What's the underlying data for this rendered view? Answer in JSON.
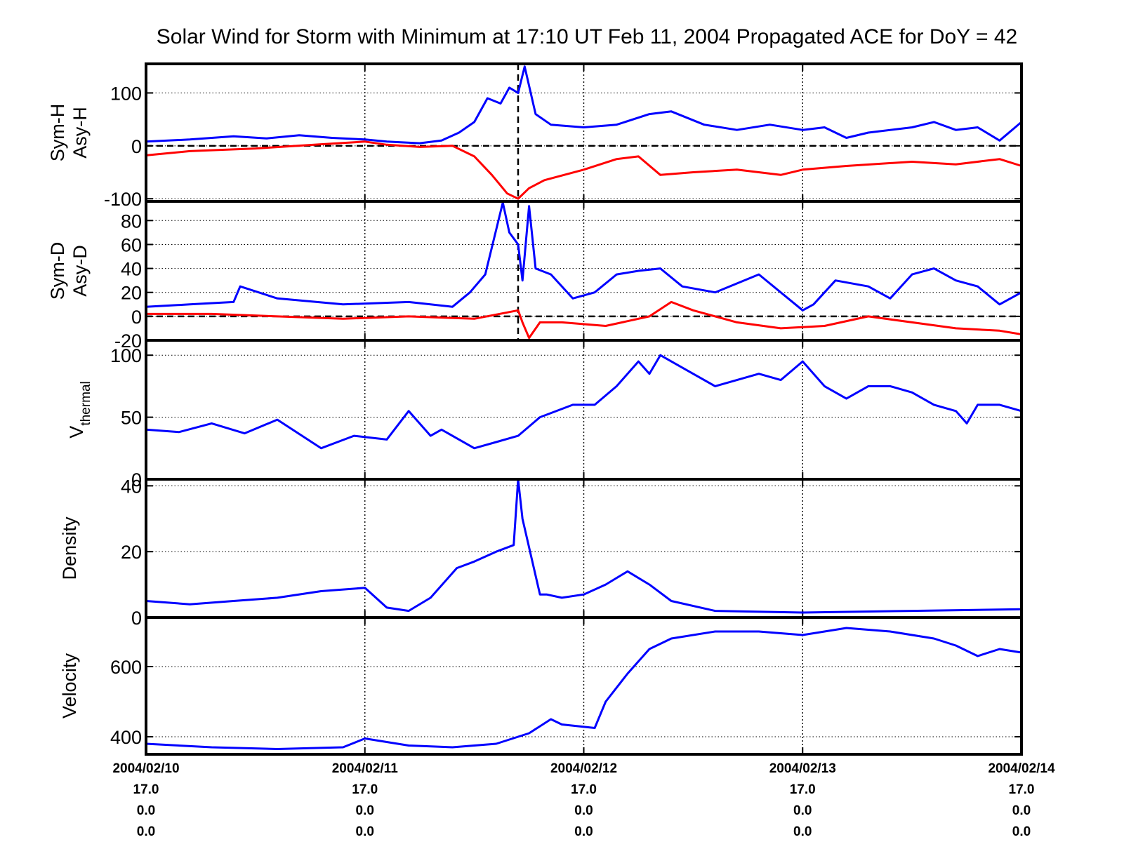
{
  "chart_data": {
    "title": "Solar Wind for Storm with Minimum at 17:10 UT Feb 11, 2004  Propagated ACE for DoY = 42",
    "x_ticks": [
      {
        "date": "2004/02/10",
        "line1": "17.0",
        "line2": "0.0",
        "line3": "0.0"
      },
      {
        "date": "2004/02/11",
        "line1": "17.0",
        "line2": "0.0",
        "line3": "0.0"
      },
      {
        "date": "2004/02/12",
        "line1": "17.0",
        "line2": "0.0",
        "line3": "0.0"
      },
      {
        "date": "2004/02/13",
        "line1": "17.0",
        "line2": "0.0",
        "line3": "0.0"
      },
      {
        "date": "2004/02/14",
        "line1": "17.0",
        "line2": "0.0",
        "line3": "0.0"
      }
    ],
    "x_range_days": [
      0,
      4
    ],
    "storm_minimum_day": 1.7,
    "grid": "dotted",
    "colors": {
      "blue": "#0000ff",
      "red": "#ff0000",
      "axis": "#000000"
    },
    "panels": [
      {
        "type": "line",
        "ylabel": [
          "Sym-H",
          "Asy-H"
        ],
        "ylim": [
          -105,
          155
        ],
        "yticks": [
          -100,
          0,
          100
        ],
        "ytick_labels": [
          "-100",
          "0",
          "100"
        ],
        "zero_line": true,
        "storm_line": true,
        "series": [
          {
            "color": "#0000ff",
            "x": [
              0,
              0.2,
              0.4,
              0.55,
              0.7,
              0.85,
              1.0,
              1.1,
              1.25,
              1.35,
              1.43,
              1.5,
              1.56,
              1.62,
              1.66,
              1.7,
              1.73,
              1.78,
              1.85,
              2.0,
              2.15,
              2.3,
              2.4,
              2.55,
              2.7,
              2.85,
              3.0,
              3.1,
              3.2,
              3.3,
              3.5,
              3.6,
              3.7,
              3.8,
              3.9,
              4.0
            ],
            "y": [
              8,
              12,
              18,
              14,
              20,
              15,
              12,
              8,
              5,
              10,
              25,
              45,
              90,
              80,
              110,
              100,
              150,
              60,
              40,
              35,
              40,
              60,
              65,
              40,
              30,
              40,
              30,
              35,
              15,
              25,
              35,
              45,
              30,
              35,
              10,
              45
            ]
          },
          {
            "color": "#ff0000",
            "x": [
              0,
              0.2,
              0.5,
              0.8,
              1.0,
              1.1,
              1.25,
              1.4,
              1.5,
              1.58,
              1.65,
              1.7,
              1.75,
              1.82,
              2.0,
              2.15,
              2.25,
              2.35,
              2.5,
              2.7,
              2.9,
              3.0,
              3.2,
              3.5,
              3.7,
              3.9,
              4.0
            ],
            "y": [
              -18,
              -10,
              -5,
              3,
              8,
              2,
              -2,
              0,
              -20,
              -55,
              -90,
              -100,
              -80,
              -65,
              -45,
              -25,
              -20,
              -55,
              -50,
              -45,
              -55,
              -45,
              -38,
              -30,
              -35,
              -25,
              -38
            ]
          }
        ]
      },
      {
        "type": "line",
        "ylabel": [
          "Sym-D",
          "Asy-D"
        ],
        "ylim": [
          -20,
          96
        ],
        "yticks": [
          -20,
          0,
          20,
          40,
          60,
          80
        ],
        "ytick_labels": [
          "-20",
          "0",
          "20",
          "40",
          "60",
          "80"
        ],
        "zero_line": true,
        "storm_line": true,
        "series": [
          {
            "color": "#0000ff",
            "x": [
              0,
              0.2,
              0.4,
              0.43,
              0.6,
              0.9,
              1.2,
              1.4,
              1.48,
              1.55,
              1.63,
              1.66,
              1.7,
              1.72,
              1.75,
              1.78,
              1.85,
              1.95,
              2.05,
              2.15,
              2.25,
              2.35,
              2.45,
              2.6,
              2.8,
              3.0,
              3.05,
              3.15,
              3.3,
              3.4,
              3.5,
              3.6,
              3.7,
              3.8,
              3.9,
              4.0
            ],
            "y": [
              8,
              10,
              12,
              25,
              15,
              10,
              12,
              8,
              20,
              35,
              95,
              70,
              60,
              30,
              92,
              40,
              35,
              15,
              20,
              35,
              38,
              40,
              25,
              20,
              35,
              5,
              10,
              30,
              25,
              15,
              35,
              40,
              30,
              25,
              10,
              20
            ]
          },
          {
            "color": "#ff0000",
            "x": [
              0,
              0.3,
              0.6,
              0.9,
              1.2,
              1.5,
              1.7,
              1.72,
              1.75,
              1.8,
              1.9,
              2.1,
              2.3,
              2.4,
              2.5,
              2.7,
              2.9,
              3.1,
              3.3,
              3.5,
              3.7,
              3.9,
              4.0
            ],
            "y": [
              2,
              2,
              0,
              -2,
              0,
              -2,
              5,
              -5,
              -18,
              -5,
              -5,
              -8,
              0,
              12,
              5,
              -5,
              -10,
              -8,
              0,
              -5,
              -10,
              -12,
              -15
            ]
          }
        ]
      },
      {
        "type": "line",
        "ylabel": [
          "V",
          "thermal"
        ],
        "ylim": [
          0,
          112
        ],
        "yticks": [
          0,
          50,
          100
        ],
        "ytick_labels": [
          "0",
          "50",
          "100"
        ],
        "zero_line": false,
        "storm_line": false,
        "series": [
          {
            "color": "#0000ff",
            "x": [
              0,
              0.15,
              0.3,
              0.45,
              0.6,
              0.8,
              0.95,
              1.1,
              1.2,
              1.3,
              1.35,
              1.5,
              1.6,
              1.7,
              1.8,
              1.95,
              2.05,
              2.15,
              2.25,
              2.3,
              2.35,
              2.45,
              2.6,
              2.8,
              2.9,
              3.0,
              3.1,
              3.2,
              3.3,
              3.4,
              3.5,
              3.6,
              3.7,
              3.75,
              3.8,
              3.9,
              4.0
            ],
            "y": [
              40,
              38,
              45,
              37,
              48,
              25,
              35,
              32,
              55,
              35,
              40,
              25,
              30,
              35,
              50,
              60,
              60,
              75,
              95,
              85,
              100,
              90,
              75,
              85,
              80,
              95,
              75,
              65,
              75,
              75,
              70,
              60,
              55,
              45,
              60,
              60,
              55
            ]
          }
        ]
      },
      {
        "type": "line",
        "ylabel": [
          "Density"
        ],
        "ylim": [
          0,
          42
        ],
        "yticks": [
          0,
          20,
          40
        ],
        "ytick_labels": [
          "0",
          "20",
          "40"
        ],
        "zero_line": false,
        "storm_line": false,
        "series": [
          {
            "color": "#0000ff",
            "x": [
              0,
              0.2,
              0.4,
              0.6,
              0.8,
              1.0,
              1.1,
              1.2,
              1.3,
              1.42,
              1.5,
              1.6,
              1.68,
              1.7,
              1.72,
              1.8,
              1.83,
              1.9,
              2.0,
              2.1,
              2.2,
              2.3,
              2.4,
              2.6,
              3.0,
              3.5,
              4.0
            ],
            "y": [
              5,
              4,
              5,
              6,
              8,
              9,
              3,
              2,
              6,
              15,
              17,
              20,
              22,
              42,
              30,
              7,
              7,
              6,
              7,
              10,
              14,
              10,
              5,
              2,
              1.5,
              2,
              2.5
            ]
          }
        ]
      },
      {
        "type": "line",
        "ylabel": [
          "Velocity"
        ],
        "ylim": [
          350,
          740
        ],
        "yticks": [
          400,
          600
        ],
        "ytick_labels": [
          "400",
          "600"
        ],
        "zero_line": false,
        "storm_line": false,
        "series": [
          {
            "color": "#0000ff",
            "x": [
              0,
              0.3,
              0.6,
              0.9,
              1.0,
              1.2,
              1.4,
              1.6,
              1.75,
              1.85,
              1.9,
              2.05,
              2.1,
              2.2,
              2.3,
              2.4,
              2.6,
              2.8,
              3.0,
              3.2,
              3.4,
              3.6,
              3.7,
              3.8,
              3.9,
              4.0
            ],
            "y": [
              380,
              370,
              365,
              370,
              395,
              375,
              370,
              380,
              410,
              450,
              435,
              425,
              500,
              580,
              650,
              680,
              700,
              700,
              690,
              710,
              700,
              680,
              660,
              630,
              650,
              640
            ]
          }
        ]
      }
    ]
  }
}
